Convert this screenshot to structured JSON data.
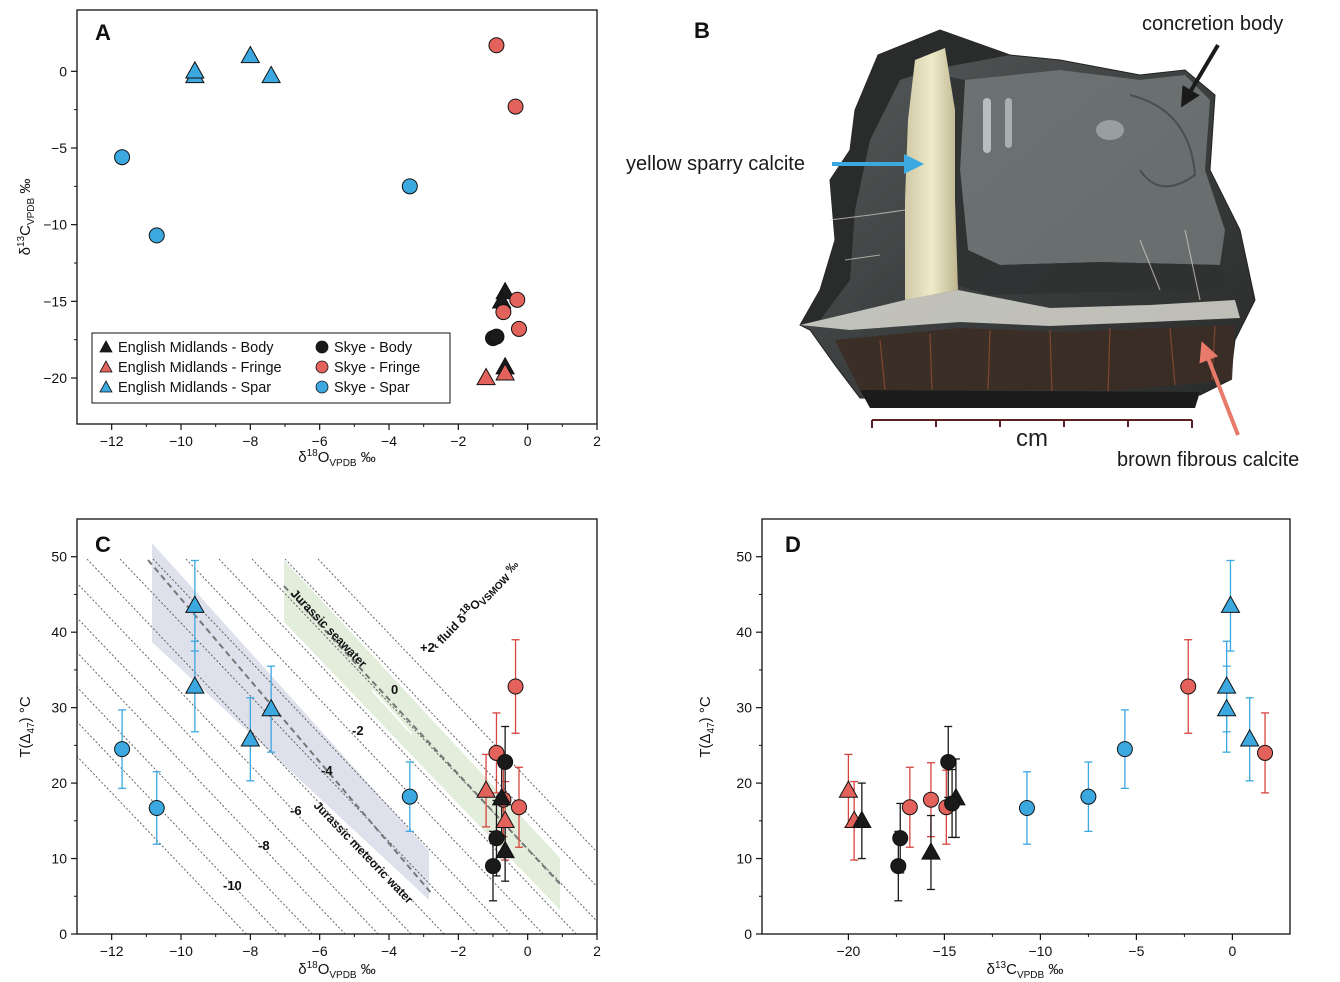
{
  "panels": {
    "A": {
      "label": "A"
    },
    "B": {
      "label": "B"
    },
    "C": {
      "label": "C"
    },
    "D": {
      "label": "D"
    }
  },
  "colors": {
    "body": "#1a1a1a",
    "fringe": "#e3625c",
    "spar": "#3ba8e0",
    "body_err": "#1a1a1a",
    "fringe_err": "#d6453f",
    "spar_err": "#3ba8e0"
  },
  "photo": {
    "labels": {
      "concretion_body": "concretion body",
      "yellow_sparry_calcite": "yellow sparry calcite",
      "brown_fibrous_calcite": "brown fibrous calcite",
      "scale": "cm"
    },
    "arrow_colors": {
      "concretion_body": "#1a1a1a",
      "yellow_sparry_calcite": "#3ba8e0",
      "brown_fibrous_calcite": "#e87a6a"
    }
  },
  "chart_data": [
    {
      "panel": "A",
      "type": "scatter",
      "xlabel": "δ18OVPDB ‰",
      "ylabel": "δ13CVPDB ‰",
      "xlim": [
        -13,
        2
      ],
      "ylim": [
        -23,
        4
      ],
      "xticks": [
        -12,
        -10,
        -8,
        -6,
        -4,
        -2,
        0,
        2
      ],
      "yticks": [
        0,
        -5,
        -10,
        -15,
        -20
      ],
      "legend": {
        "placement": "bottom-left",
        "entries": [
          {
            "label": "English Midlands - Body",
            "marker": "triangle",
            "group": "body"
          },
          {
            "label": "English Midlands - Fringe",
            "marker": "triangle",
            "group": "fringe"
          },
          {
            "label": "English Midlands - Spar",
            "marker": "triangle",
            "group": "spar"
          },
          {
            "label": "Skye - Body",
            "marker": "circle",
            "group": "body"
          },
          {
            "label": "Skye - Fringe",
            "marker": "circle",
            "group": "fringe"
          },
          {
            "label": "Skye - Spar",
            "marker": "circle",
            "group": "spar"
          }
        ]
      },
      "series": [
        {
          "name": "English Midlands - Body",
          "marker": "triangle",
          "group": "body",
          "points": [
            {
              "x": -0.65,
              "y": -14.4
            },
            {
              "x": -0.75,
              "y": -15.0
            },
            {
              "x": -0.65,
              "y": -19.3
            }
          ]
        },
        {
          "name": "English Midlands - Fringe",
          "marker": "triangle",
          "group": "fringe",
          "points": [
            {
              "x": -1.2,
              "y": -20.0
            },
            {
              "x": -0.65,
              "y": -19.7
            }
          ]
        },
        {
          "name": "English Midlands - Spar",
          "marker": "triangle",
          "group": "spar",
          "points": [
            {
              "x": -9.6,
              "y": -0.3
            },
            {
              "x": -9.6,
              "y": 0.0
            },
            {
              "x": -8.0,
              "y": 1.0
            },
            {
              "x": -7.4,
              "y": -0.3
            }
          ]
        },
        {
          "name": "Skye - Body",
          "marker": "circle",
          "group": "body",
          "points": [
            {
              "x": -1.0,
              "y": -17.4
            },
            {
              "x": -0.9,
              "y": -17.3
            }
          ]
        },
        {
          "name": "Skye - Fringe",
          "marker": "circle",
          "group": "fringe",
          "points": [
            {
              "x": -0.9,
              "y": 1.7
            },
            {
              "x": -0.35,
              "y": -2.3
            },
            {
              "x": -0.3,
              "y": -14.9
            },
            {
              "x": -0.7,
              "y": -15.7
            },
            {
              "x": -0.25,
              "y": -16.8
            }
          ]
        },
        {
          "name": "Skye - Spar",
          "marker": "circle",
          "group": "spar",
          "points": [
            {
              "x": -11.7,
              "y": -5.6
            },
            {
              "x": -10.7,
              "y": -10.7
            },
            {
              "x": -3.4,
              "y": -7.5
            }
          ]
        }
      ]
    },
    {
      "panel": "C",
      "type": "scatter",
      "xlabel": "δ18OVPDB ‰",
      "ylabel": "T(Δ47) °C",
      "xlim": [
        -13,
        2
      ],
      "ylim": [
        0,
        55
      ],
      "xticks": [
        -12,
        -10,
        -8,
        -6,
        -4,
        -2,
        0,
        2
      ],
      "yticks": [
        0,
        10,
        20,
        30,
        40,
        50
      ],
      "bands": [
        {
          "label": "Jurassic seawater",
          "color": "#9ec48a"
        },
        {
          "label": "Jurassic meteoric water",
          "color": "#8a8fb8"
        }
      ],
      "contour_title": "fluid δ18OVSMOW ‰",
      "contours": [
        "+2",
        "0",
        "-2",
        "-4",
        "-6",
        "-8",
        "-10"
      ],
      "series": [
        {
          "name": "Spar",
          "group": "spar",
          "points": [
            {
              "marker": "triangle",
              "x": -9.6,
              "y": 43.5,
              "err": 6.0
            },
            {
              "marker": "triangle",
              "x": -9.6,
              "y": 32.8,
              "err": 6.0
            },
            {
              "marker": "triangle",
              "x": -8.0,
              "y": 25.8,
              "err": 5.5
            },
            {
              "marker": "triangle",
              "x": -7.4,
              "y": 29.8,
              "err": 5.7
            },
            {
              "marker": "circle",
              "x": -11.7,
              "y": 24.5,
              "err": 5.2
            },
            {
              "marker": "circle",
              "x": -10.7,
              "y": 16.7,
              "err": 4.8
            },
            {
              "marker": "circle",
              "x": -3.4,
              "y": 18.2,
              "err": 4.6
            }
          ]
        },
        {
          "name": "Fringe",
          "group": "fringe",
          "points": [
            {
              "marker": "triangle",
              "x": -1.2,
              "y": 19.0,
              "err": 4.8
            },
            {
              "marker": "triangle",
              "x": -0.65,
              "y": 15.0,
              "err": 5.2
            },
            {
              "marker": "circle",
              "x": -0.35,
              "y": 32.8,
              "err": 6.2
            },
            {
              "marker": "circle",
              "x": -0.9,
              "y": 24.0,
              "err": 5.3
            },
            {
              "marker": "circle",
              "x": -0.7,
              "y": 17.8,
              "err": 4.9
            },
            {
              "marker": "circle",
              "x": -0.25,
              "y": 16.8,
              "err": 5.3
            }
          ]
        },
        {
          "name": "Body",
          "group": "body",
          "points": [
            {
              "marker": "triangle",
              "x": -0.65,
              "y": 11.0,
              "err": 4.0
            },
            {
              "marker": "triangle",
              "x": -0.75,
              "y": 18.0,
              "err": 5.0
            },
            {
              "marker": "circle",
              "x": -1.0,
              "y": 9.0,
              "err": 4.6
            },
            {
              "marker": "circle",
              "x": -0.9,
              "y": 12.7,
              "err": 5.0
            },
            {
              "marker": "circle",
              "x": -0.65,
              "y": 22.8,
              "err": 4.7
            }
          ]
        }
      ]
    },
    {
      "panel": "D",
      "type": "scatter",
      "xlabel": "δ13CVPDB ‰",
      "ylabel": "T(Δ47) °C",
      "xlim": [
        -24.5,
        3
      ],
      "ylim": [
        0,
        55
      ],
      "xticks": [
        -20,
        -15,
        -10,
        -5,
        0
      ],
      "yticks": [
        0,
        10,
        20,
        30,
        40,
        50
      ],
      "series": [
        {
          "name": "Spar",
          "group": "spar",
          "points": [
            {
              "marker": "triangle",
              "x": -0.1,
              "y": 43.5,
              "err": 6.0
            },
            {
              "marker": "triangle",
              "x": -0.3,
              "y": 32.8,
              "err": 6.0
            },
            {
              "marker": "triangle",
              "x": -0.3,
              "y": 29.8,
              "err": 5.7
            },
            {
              "marker": "triangle",
              "x": 0.9,
              "y": 25.8,
              "err": 5.5
            },
            {
              "marker": "circle",
              "x": -5.6,
              "y": 24.5,
              "err": 5.2
            },
            {
              "marker": "circle",
              "x": -10.7,
              "y": 16.7,
              "err": 4.8
            },
            {
              "marker": "circle",
              "x": -7.5,
              "y": 18.2,
              "err": 4.6
            }
          ]
        },
        {
          "name": "Fringe",
          "group": "fringe",
          "points": [
            {
              "marker": "triangle",
              "x": -20.0,
              "y": 19.0,
              "err": 4.8
            },
            {
              "marker": "triangle",
              "x": -19.7,
              "y": 15.0,
              "err": 5.2
            },
            {
              "marker": "circle",
              "x": -2.3,
              "y": 32.8,
              "err": 6.2
            },
            {
              "marker": "circle",
              "x": 1.7,
              "y": 24.0,
              "err": 5.3
            },
            {
              "marker": "circle",
              "x": -15.7,
              "y": 17.8,
              "err": 4.9
            },
            {
              "marker": "circle",
              "x": -16.8,
              "y": 16.8,
              "err": 5.3
            },
            {
              "marker": "circle",
              "x": -14.9,
              "y": 16.8,
              "err": 4.9
            }
          ]
        },
        {
          "name": "Body",
          "group": "body",
          "points": [
            {
              "marker": "triangle",
              "x": -19.3,
              "y": 15.0,
              "err": 5.0
            },
            {
              "marker": "triangle",
              "x": -15.7,
              "y": 10.8,
              "err": 4.9
            },
            {
              "marker": "triangle",
              "x": -14.4,
              "y": 18.0,
              "err": 5.2
            },
            {
              "marker": "circle",
              "x": -17.4,
              "y": 9.0,
              "err": 4.6
            },
            {
              "marker": "circle",
              "x": -17.3,
              "y": 12.7,
              "err": 4.6
            },
            {
              "marker": "circle",
              "x": -14.8,
              "y": 22.8,
              "err": 4.7
            },
            {
              "marker": "circle",
              "x": -14.6,
              "y": 17.3,
              "err": 4.5
            }
          ]
        }
      ]
    }
  ]
}
